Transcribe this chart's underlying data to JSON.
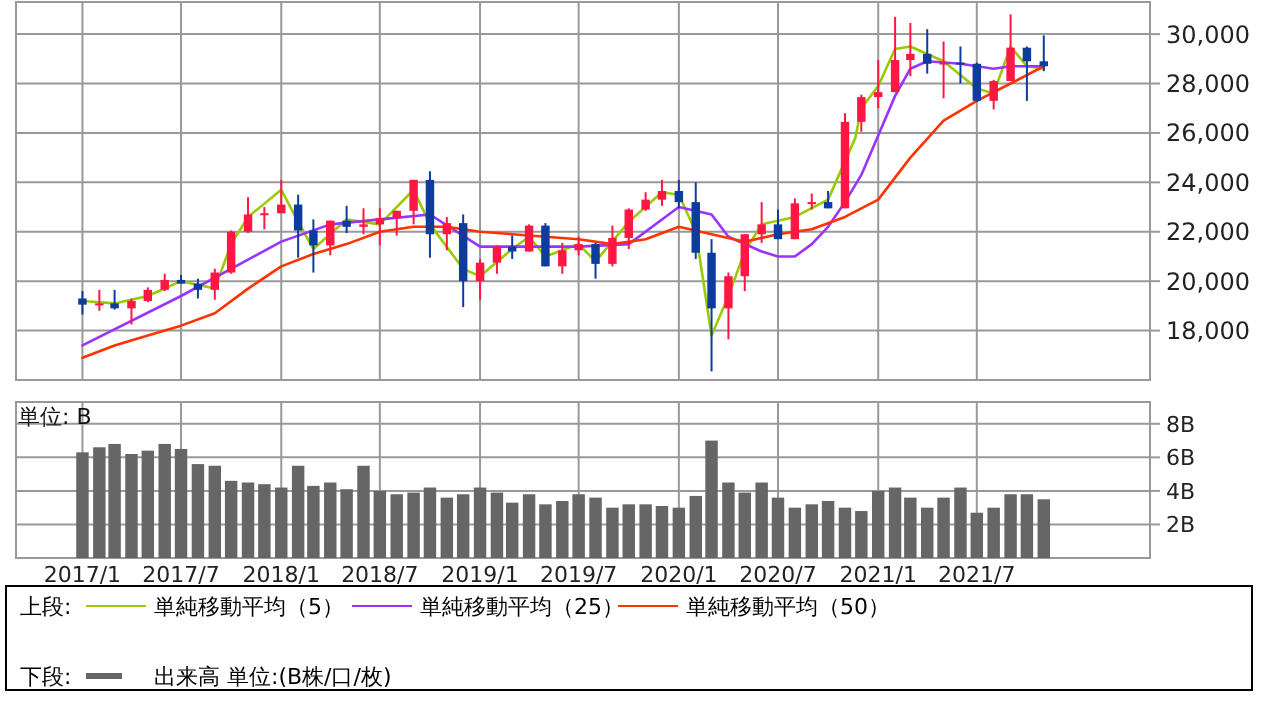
{
  "chart_data": [
    {
      "type": "candlestick",
      "legend": "bottom",
      "legend_title": "上段:",
      "grid": true,
      "tick_labels": "y",
      "xlim": [
        "2016-09-01",
        "2022-05-15"
      ],
      "xticks": [
        {
          "value": "2017-01",
          "label": null
        },
        {
          "value": "2017-07",
          "label": null
        },
        {
          "value": "2018-01",
          "label": null
        },
        {
          "value": "2018-07",
          "label": null
        },
        {
          "value": "2019-01",
          "label": null
        },
        {
          "value": "2019-07",
          "label": null
        },
        {
          "value": "2020-01",
          "label": null
        },
        {
          "value": "2020-07",
          "label": null
        },
        {
          "value": "2021-01",
          "label": null
        },
        {
          "value": "2021-07",
          "label": null
        }
      ],
      "ylim": [
        16000,
        31300
      ],
      "yticks": [
        {
          "value": 18000,
          "label": "18,000"
        },
        {
          "value": 20000,
          "label": "20,000"
        },
        {
          "value": 22000,
          "label": "22,000"
        },
        {
          "value": 24000,
          "label": "24,000"
        },
        {
          "value": 26000,
          "label": "26,000"
        },
        {
          "value": 28000,
          "label": "28,000"
        },
        {
          "value": 30000,
          "label": "30,000"
        }
      ],
      "colors": [
        "#0d3c9c",
        "#ff1744",
        "#0d3c9c",
        "#ff1744",
        "#ff1744",
        "#ff1744",
        "#0d3c9c",
        "#0d3c9c",
        "#ff1744",
        "#ff1744",
        "#ff1744",
        "#ff1744",
        "#ff1744",
        "#0d3c9c",
        "#0d3c9c",
        "#ff1744",
        "#0d3c9c",
        "#ff1744",
        "#ff1744",
        "#ff1744",
        "#ff1744",
        "#0d3c9c",
        "#ff1744",
        "#0d3c9c",
        "#ff1744",
        "#ff1744",
        "#0d3c9c",
        "#ff1744",
        "#0d3c9c",
        "#ff1744",
        "#ff1744",
        "#0d3c9c",
        "#ff1744",
        "#ff1744",
        "#ff1744",
        "#ff1744",
        "#0d3c9c",
        "#0d3c9c",
        "#0d3c9c",
        "#ff1744",
        "#ff1744",
        "#ff1744",
        "#0d3c9c",
        "#ff1744",
        "#ff1744",
        "#0d3c9c",
        "#ff1744",
        "#ff1744",
        "#ff1744",
        "#ff1744",
        "#ff1744",
        "#0d3c9c",
        "#ff1744",
        "#0d3c9c",
        "#0d3c9c",
        "#ff1744",
        "#ff1744",
        "#0d3c9c",
        "#0d3c9c"
      ],
      "x": [
        "2017-01",
        "2017-02",
        "2017-03",
        "2017-04",
        "2017-05",
        "2017-06",
        "2017-07",
        "2017-08",
        "2017-09",
        "2017-10",
        "2017-11",
        "2017-12",
        "2018-01",
        "2018-02",
        "2018-03",
        "2018-04",
        "2018-05",
        "2018-06",
        "2018-07",
        "2018-08",
        "2018-09",
        "2018-10",
        "2018-11",
        "2018-12",
        "2019-01",
        "2019-02",
        "2019-03",
        "2019-04",
        "2019-05",
        "2019-06",
        "2019-07",
        "2019-08",
        "2019-09",
        "2019-10",
        "2019-11",
        "2019-12",
        "2020-01",
        "2020-02",
        "2020-03",
        "2020-04",
        "2020-05",
        "2020-06",
        "2020-07",
        "2020-08",
        "2020-09",
        "2020-10",
        "2020-11",
        "2020-12",
        "2021-01",
        "2021-02",
        "2021-03",
        "2021-04",
        "2021-05",
        "2021-06",
        "2021-07",
        "2021-08",
        "2021-09",
        "2021-10",
        "2021-11"
      ],
      "ohlc": [
        [
          19300,
          19600,
          18650,
          19050
        ],
        [
          19050,
          19650,
          18800,
          19100
        ],
        [
          19100,
          19650,
          18850,
          18900
        ],
        [
          18900,
          19300,
          18250,
          19200
        ],
        [
          19200,
          19750,
          19150,
          19650
        ],
        [
          19650,
          20300,
          19600,
          20050
        ],
        [
          20050,
          20250,
          19900,
          19900
        ],
        [
          19900,
          20100,
          19300,
          19650
        ],
        [
          19650,
          20500,
          19250,
          20350
        ],
        [
          20350,
          22050,
          20300,
          22000
        ],
        [
          22000,
          23400,
          21950,
          22700
        ],
        [
          22700,
          23000,
          22100,
          22750
        ],
        [
          22750,
          24100,
          22750,
          23100
        ],
        [
          23100,
          23500,
          20950,
          22050
        ],
        [
          22050,
          22500,
          20350,
          21450
        ],
        [
          21450,
          22450,
          21050,
          22450
        ],
        [
          22450,
          23050,
          21950,
          22200
        ],
        [
          22200,
          22950,
          21900,
          22300
        ],
        [
          22300,
          22950,
          21450,
          22550
        ],
        [
          22550,
          22850,
          21850,
          22850
        ],
        [
          22850,
          24100,
          22300,
          24100
        ],
        [
          24100,
          24450,
          20950,
          21900
        ],
        [
          21900,
          22600,
          21250,
          22350
        ],
        [
          22350,
          22700,
          18950,
          20000
        ],
        [
          20000,
          20900,
          19250,
          20750
        ],
        [
          20750,
          21450,
          20300,
          21400
        ],
        [
          21400,
          21850,
          20900,
          21200
        ],
        [
          21200,
          22300,
          21200,
          22250
        ],
        [
          22250,
          22350,
          20600,
          20600
        ],
        [
          20600,
          21550,
          20300,
          21250
        ],
        [
          21250,
          21800,
          21050,
          21500
        ],
        [
          21500,
          21550,
          20100,
          20700
        ],
        [
          20700,
          22250,
          20600,
          21750
        ],
        [
          21750,
          22950,
          21300,
          22900
        ],
        [
          22900,
          23600,
          22850,
          23300
        ],
        [
          23300,
          24100,
          23050,
          23650
        ],
        [
          23650,
          24100,
          22950,
          23200
        ],
        [
          23200,
          24000,
          20900,
          21150
        ],
        [
          21150,
          21700,
          16350,
          18900
        ],
        [
          18900,
          20350,
          17650,
          20200
        ],
        [
          20200,
          21900,
          19600,
          21900
        ],
        [
          21900,
          23200,
          21550,
          22300
        ],
        [
          22300,
          22900,
          21700,
          21700
        ],
        [
          21700,
          23350,
          21700,
          23150
        ],
        [
          23150,
          23550,
          22900,
          23200
        ],
        [
          23200,
          23650,
          22950,
          22950
        ],
        [
          22950,
          26800,
          22950,
          26450
        ],
        [
          26450,
          27550,
          26050,
          27450
        ],
        [
          27450,
          28950,
          27000,
          27650
        ],
        [
          27650,
          30700,
          27650,
          28950
        ],
        [
          28950,
          30450,
          28300,
          29200
        ],
        [
          29200,
          30200,
          28400,
          28800
        ],
        [
          28800,
          29700,
          27400,
          28850
        ],
        [
          28850,
          29500,
          28000,
          28800
        ],
        [
          28800,
          28850,
          27250,
          27300
        ],
        [
          27300,
          28150,
          26950,
          28100
        ],
        [
          28100,
          30800,
          28100,
          29450
        ],
        [
          29450,
          29500,
          27300,
          28900
        ],
        [
          28900,
          29950,
          28500,
          28700
        ]
      ],
      "series": [
        {
          "type": "line",
          "name": "単純移動平均（5）",
          "color": "#99cc00",
          "x": [
            "2017-01",
            "2017-03",
            "2017-05",
            "2017-07",
            "2017-09",
            "2017-10",
            "2017-11",
            "2018-01",
            "2018-02",
            "2018-03",
            "2018-05",
            "2018-07",
            "2018-09",
            "2018-10",
            "2018-12",
            "2019-01",
            "2019-03",
            "2019-04",
            "2019-05",
            "2019-07",
            "2019-08",
            "2019-10",
            "2019-12",
            "2020-01",
            "2020-02",
            "2020-03",
            "2020-04",
            "2020-05",
            "2020-06",
            "2020-08",
            "2020-10",
            "2020-11-20",
            "2020-12",
            "2021-01",
            "2021-02",
            "2021-03",
            "2021-05",
            "2021-07",
            "2021-08",
            "2021-09",
            "2021-10",
            "2021-11"
          ],
          "values": [
            19200,
            19100,
            19400,
            20000,
            19700,
            21500,
            22600,
            23700,
            22400,
            21300,
            22500,
            22300,
            23700,
            22300,
            20500,
            20200,
            21300,
            21800,
            21000,
            21500,
            20800,
            22400,
            23600,
            23500,
            22000,
            17800,
            19400,
            21200,
            22300,
            22600,
            23300,
            25800,
            27000,
            27900,
            29400,
            29500,
            28900,
            27800,
            27600,
            29500,
            28700,
            28600
          ]
        },
        {
          "type": "line",
          "name": "単純移動平均（25）",
          "color": "#9933ff",
          "x": [
            "2017-01",
            "2017-07",
            "2018-01",
            "2018-04",
            "2018-07",
            "2018-10",
            "2019-01",
            "2019-04",
            "2019-07",
            "2019-10",
            "2020-01",
            "2020-03",
            "2020-04",
            "2020-06",
            "2020-07",
            "2020-08",
            "2020-09",
            "2020-10",
            "2020-11",
            "2020-12",
            "2021-01",
            "2021-02",
            "2021-03",
            "2021-04",
            "2021-06",
            "2021-08",
            "2021-09",
            "2021-11"
          ],
          "values": [
            17400,
            19400,
            21600,
            22300,
            22500,
            22700,
            21400,
            21400,
            21400,
            21500,
            23000,
            22700,
            21800,
            21200,
            21000,
            21000,
            21500,
            22200,
            23200,
            24300,
            25900,
            27500,
            28600,
            28900,
            28800,
            28600,
            28700,
            28700
          ]
        },
        {
          "type": "line",
          "name": "単純移動平均（50）",
          "color": "#ff3300",
          "x": [
            "2017-01",
            "2017-03",
            "2017-05",
            "2017-07",
            "2017-09",
            "2017-11",
            "2018-01",
            "2018-03",
            "2018-05",
            "2018-07",
            "2018-09",
            "2018-11",
            "2019-01",
            "2019-03",
            "2019-05",
            "2019-07",
            "2019-09",
            "2019-11",
            "2020-01",
            "2020-03",
            "2020-05",
            "2020-07",
            "2020-09",
            "2020-11",
            "2021-01",
            "2021-03",
            "2021-05",
            "2021-07",
            "2021-09",
            "2021-11"
          ],
          "values": [
            16900,
            17400,
            17800,
            18200,
            18700,
            19700,
            20600,
            21100,
            21500,
            22000,
            22200,
            22200,
            22000,
            21900,
            21800,
            21700,
            21500,
            21700,
            22200,
            21900,
            21600,
            21900,
            22100,
            22600,
            23300,
            25000,
            26500,
            27300,
            28000,
            28700
          ]
        }
      ]
    },
    {
      "type": "bar",
      "legend": "bottom",
      "legend_title": "下段:",
      "grid": true,
      "annotations": [
        "単位: B"
      ],
      "xlim": [
        "2016-09-01",
        "2022-05-15"
      ],
      "xticks": [
        {
          "value": "2017-01",
          "label": "2017/1"
        },
        {
          "value": "2017-07",
          "label": "2017/7"
        },
        {
          "value": "2018-01",
          "label": "2018/1"
        },
        {
          "value": "2018-07",
          "label": "2018/7"
        },
        {
          "value": "2019-01",
          "label": "2019/1"
        },
        {
          "value": "2019-07",
          "label": "2019/7"
        },
        {
          "value": "2020-01",
          "label": "2020/1"
        },
        {
          "value": "2020-07",
          "label": "2020/7"
        },
        {
          "value": "2021-01",
          "label": "2021/1"
        },
        {
          "value": "2021-07",
          "label": "2021/7"
        }
      ],
      "ylim": [
        0,
        9.3
      ],
      "yticks": [
        {
          "value": 2,
          "label": "2B"
        },
        {
          "value": 4,
          "label": "4B"
        },
        {
          "value": 6,
          "label": "6B"
        },
        {
          "value": 8,
          "label": "8B"
        }
      ],
      "x": [
        "2017-01",
        "2017-02",
        "2017-03",
        "2017-04",
        "2017-05",
        "2017-06",
        "2017-07",
        "2017-08",
        "2017-09",
        "2017-10",
        "2017-11",
        "2017-12",
        "2018-01",
        "2018-02",
        "2018-03",
        "2018-04",
        "2018-05",
        "2018-06",
        "2018-07",
        "2018-08",
        "2018-09",
        "2018-10",
        "2018-11",
        "2018-12",
        "2019-01",
        "2019-02",
        "2019-03",
        "2019-04",
        "2019-05",
        "2019-06",
        "2019-07",
        "2019-08",
        "2019-09",
        "2019-10",
        "2019-11",
        "2019-12",
        "2020-01",
        "2020-02",
        "2020-03",
        "2020-04",
        "2020-05",
        "2020-06",
        "2020-07",
        "2020-08",
        "2020-09",
        "2020-10",
        "2020-11",
        "2020-12",
        "2021-01",
        "2021-02",
        "2021-03",
        "2021-04",
        "2021-05",
        "2021-06",
        "2021-07",
        "2021-08",
        "2021-09",
        "2021-10",
        "2021-11"
      ],
      "series": [
        {
          "name": "出来高 単位:(B株/口/枚)",
          "color": "#666666",
          "values": [
            6.3,
            6.6,
            6.8,
            6.2,
            6.4,
            6.8,
            6.5,
            5.6,
            5.5,
            4.6,
            4.5,
            4.4,
            4.2,
            5.5,
            4.3,
            4.5,
            4.1,
            5.5,
            4.0,
            3.8,
            3.9,
            4.2,
            3.6,
            3.8,
            4.2,
            3.9,
            3.3,
            3.8,
            3.2,
            3.4,
            3.8,
            3.6,
            3.0,
            3.2,
            3.2,
            3.1,
            3.0,
            3.7,
            7.0,
            4.5,
            3.9,
            4.5,
            3.6,
            3.0,
            3.2,
            3.4,
            3.0,
            2.8,
            4.0,
            4.2,
            3.6,
            3.0,
            3.6,
            4.2,
            2.7,
            3.0,
            3.8,
            3.8,
            3.5
          ]
        }
      ]
    }
  ]
}
